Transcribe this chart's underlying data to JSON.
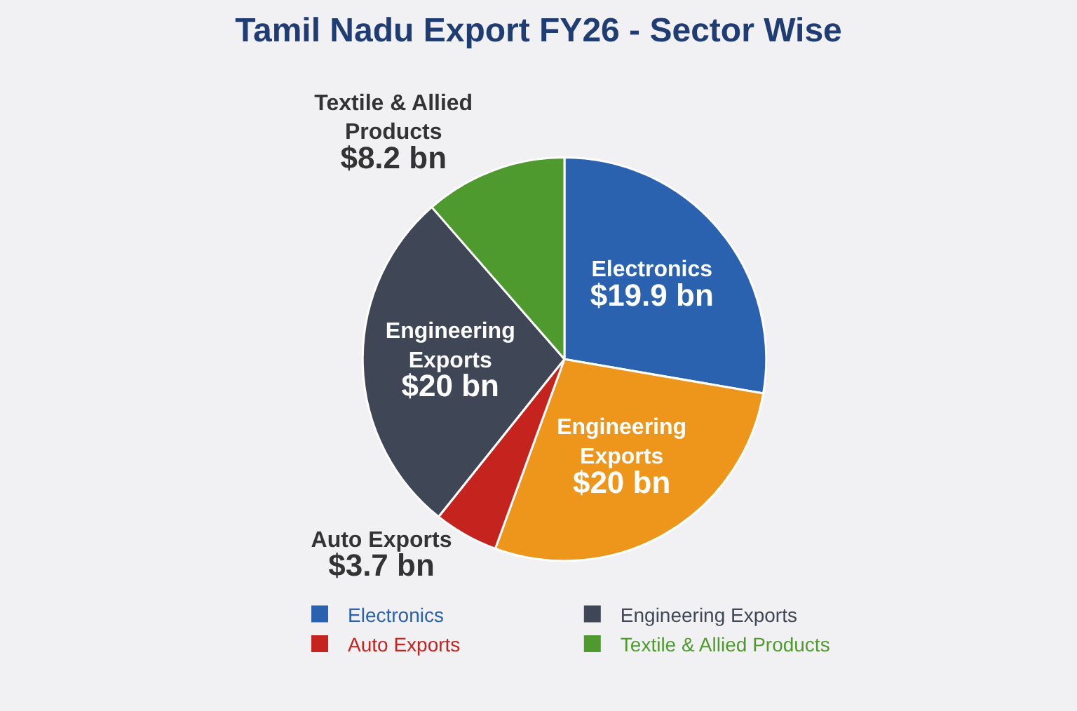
{
  "chart_data": {
    "type": "pie",
    "title": "Tamil Nadu Export FY26 - Sector Wise",
    "categories": [
      "Electronics",
      "Engineering Exports",
      "Auto Exports",
      "Engineering Exports",
      "Textile & Allied Products"
    ],
    "values": [
      19.9,
      20,
      3.7,
      20,
      8.2
    ],
    "value_labels": [
      "$19.9 bn",
      "$20 bn",
      "$3.7 bn",
      "$20 bn",
      "$8.2 bn"
    ],
    "colors": [
      "#2a62b0",
      "#ee951c",
      "#c4231e",
      "#3f4757",
      "#4f9a2f"
    ],
    "legend": "bottom"
  }
}
